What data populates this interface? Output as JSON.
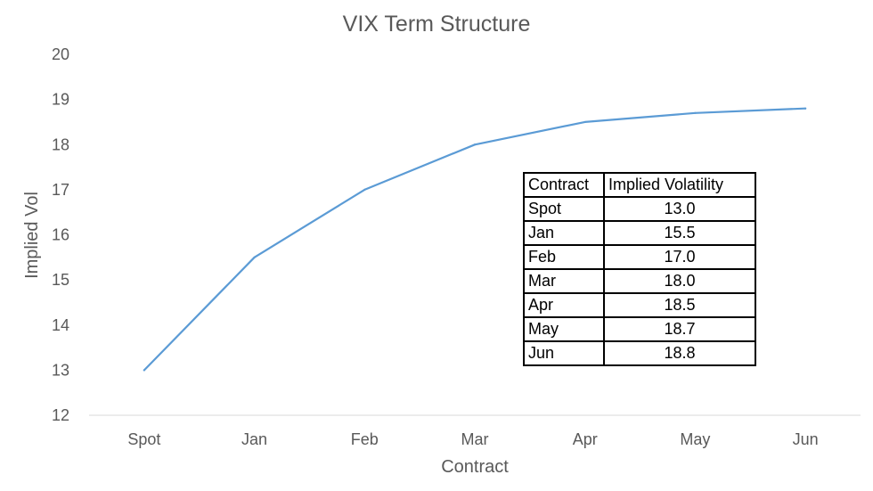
{
  "chart_data": {
    "type": "line",
    "title": "VIX Term Structure",
    "xlabel": "Contract",
    "ylabel": "Implied Vol",
    "categories": [
      "Spot",
      "Jan",
      "Feb",
      "Mar",
      "Apr",
      "May",
      "Jun"
    ],
    "series": [
      {
        "values": [
          13.0,
          15.5,
          17.0,
          18.0,
          18.5,
          18.7,
          18.8
        ],
        "color": "#5b9bd5"
      }
    ],
    "ylim": [
      12,
      20
    ],
    "yticks": [
      12,
      13,
      14,
      15,
      16,
      17,
      18,
      19,
      20
    ],
    "grid": false,
    "legend": "none"
  },
  "table": {
    "headers": [
      "Contract",
      "Implied Volatility"
    ],
    "rows": [
      [
        "Spot",
        "13.0"
      ],
      [
        "Jan",
        "15.5"
      ],
      [
        "Feb",
        "17.0"
      ],
      [
        "Mar",
        "18.0"
      ],
      [
        "Apr",
        "18.5"
      ],
      [
        "May",
        "18.7"
      ],
      [
        "Jun",
        "18.8"
      ]
    ]
  }
}
